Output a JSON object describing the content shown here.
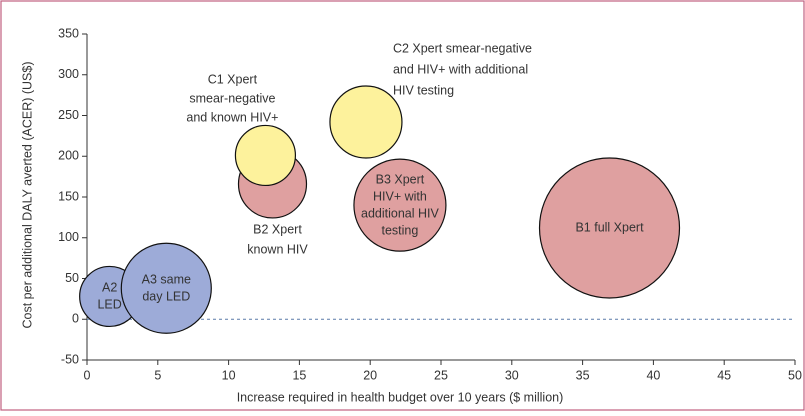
{
  "chart_data": {
    "type": "bubble",
    "xlabel": "Increase required in health budget over 10 years ($ million)",
    "ylabel": "Cost per additional DALY averted (ACER) (US$)",
    "xlim": [
      0,
      50
    ],
    "xticks": [
      0,
      5,
      10,
      15,
      20,
      25,
      30,
      35,
      40,
      45,
      50
    ],
    "ylim": [
      -50,
      350
    ],
    "yticks": [
      -50,
      0,
      50,
      100,
      150,
      200,
      250,
      300,
      350
    ],
    "hline": 0,
    "points": [
      {
        "label": [
          "A2",
          "LED"
        ],
        "x": 1.6,
        "y": 28,
        "size": 30,
        "color": "#9dabd8"
      },
      {
        "label": [
          "A3 same",
          "day LED"
        ],
        "x": 5.6,
        "y": 38,
        "size": 45,
        "color": "#9dabd8"
      },
      {
        "label": [
          "B2 Xpert",
          "known HIV"
        ],
        "x": 13.1,
        "y": 166,
        "size": 34,
        "color": "#dfa0a0"
      },
      {
        "label": [
          "C1 Xpert",
          "smear-negative",
          "and known HIV+"
        ],
        "x": 12.6,
        "y": 201,
        "size": 30,
        "color": "#fdf29c"
      },
      {
        "label": [
          "B3 Xpert",
          "HIV+ with",
          "additional HIV",
          "testing"
        ],
        "x": 22.1,
        "y": 140,
        "size": 46,
        "color": "#dfa0a0"
      },
      {
        "label": [
          "C2 Xpert smear-negative",
          "and HIV+ with additional",
          "HIV testing"
        ],
        "x": 19.7,
        "y": 242,
        "size": 36,
        "color": "#fdf29c"
      },
      {
        "label": [
          "B1 full Xpert"
        ],
        "x": 36.9,
        "y": 112,
        "size": 70,
        "color": "#dfa0a0"
      }
    ]
  }
}
